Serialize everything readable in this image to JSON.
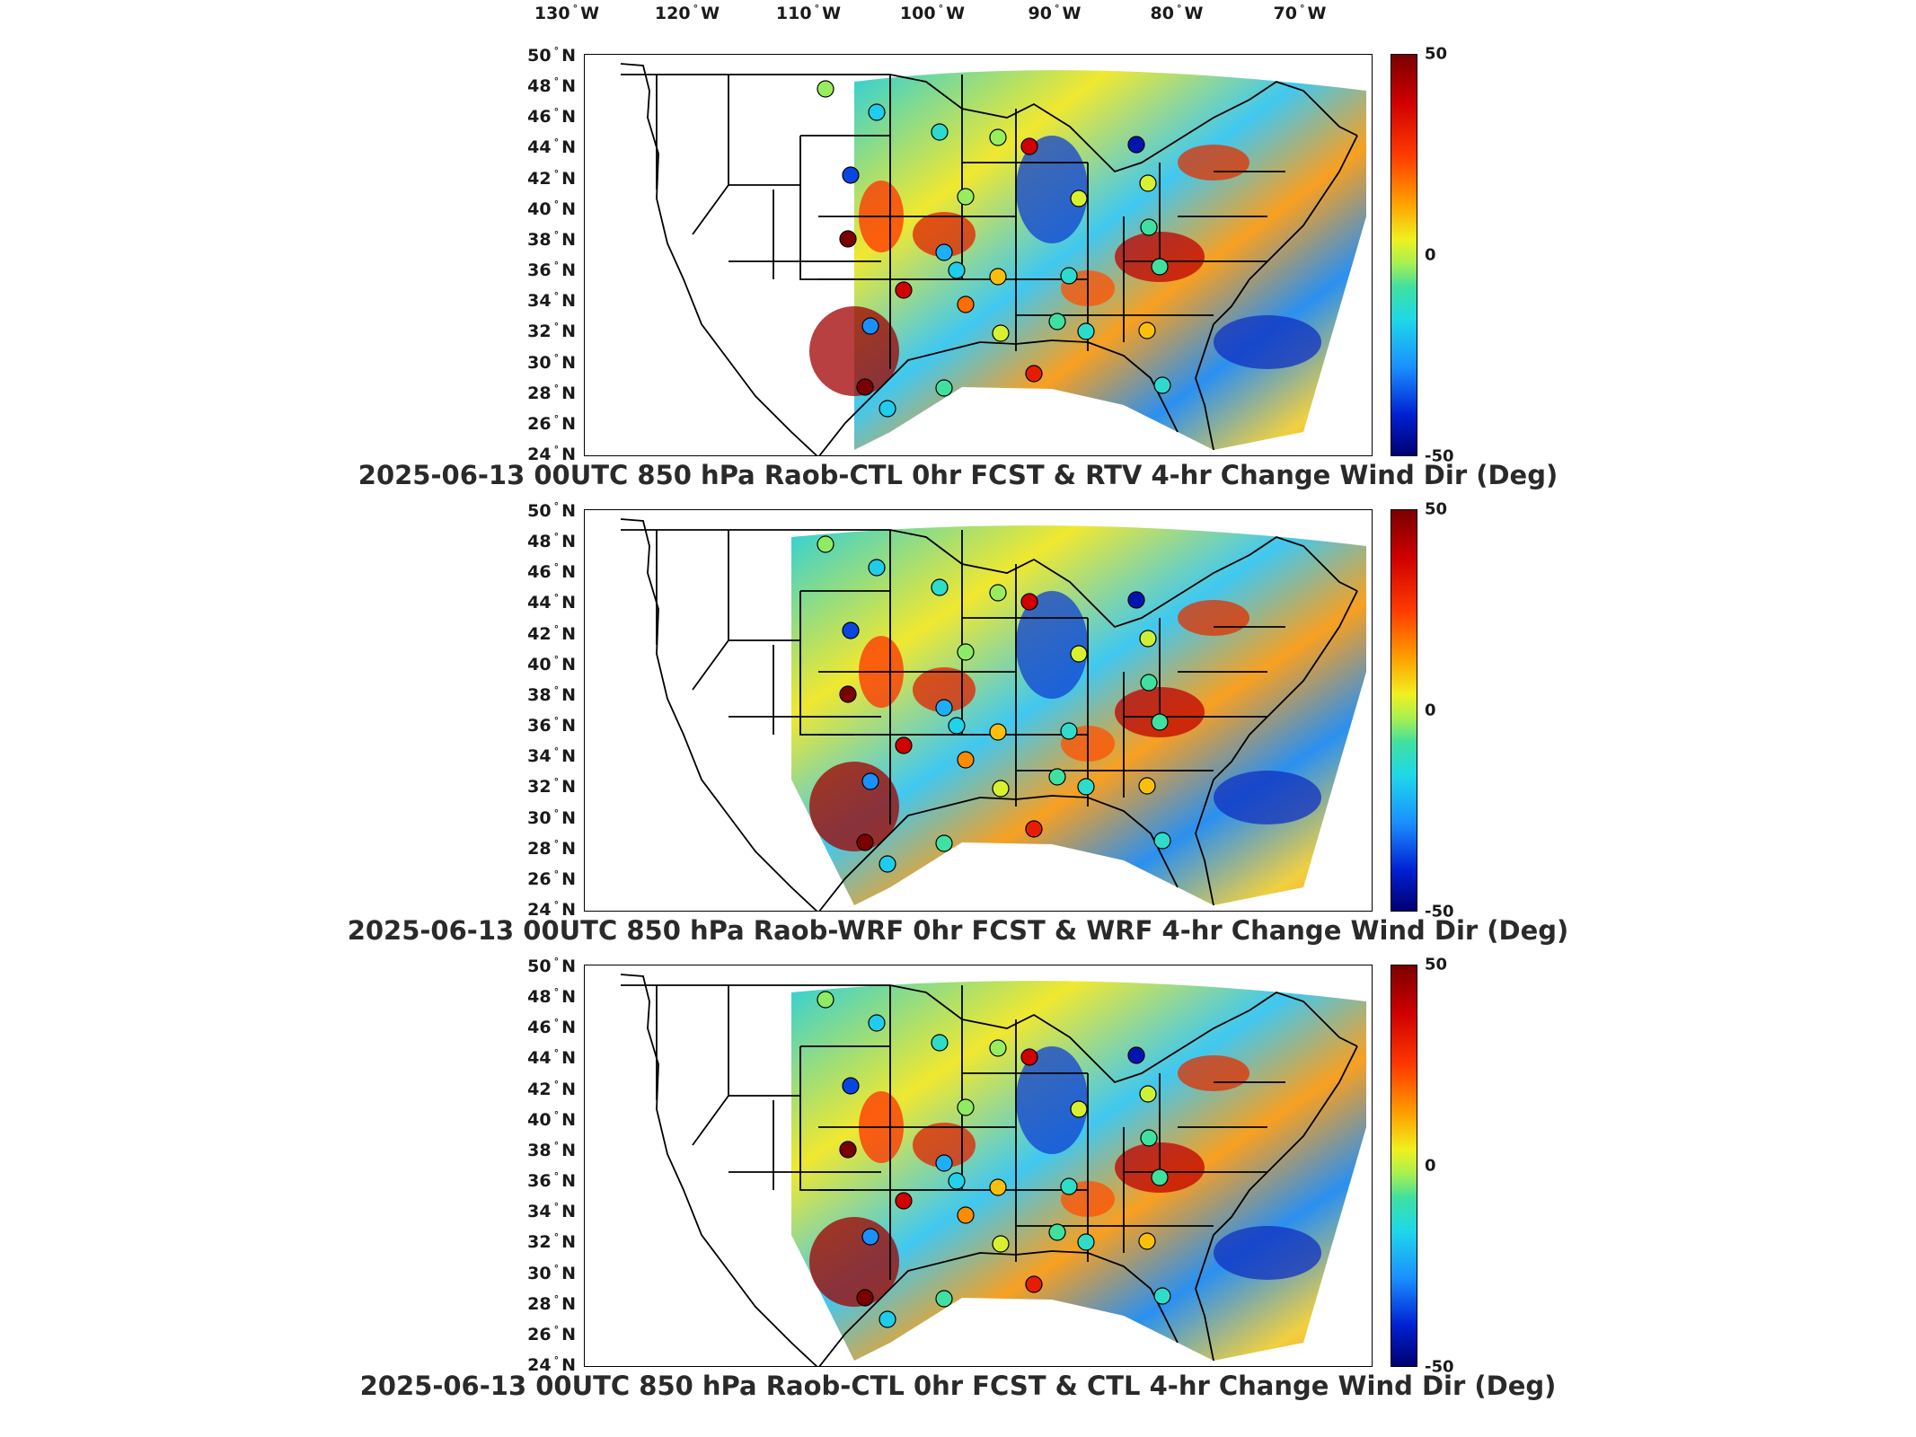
{
  "lon_labels": [
    {
      "deg": "130",
      "dir": "W"
    },
    {
      "deg": "120",
      "dir": "W"
    },
    {
      "deg": "110",
      "dir": "W"
    },
    {
      "deg": "100",
      "dir": "W"
    },
    {
      "deg": "90",
      "dir": "W"
    },
    {
      "deg": "80",
      "dir": "W"
    },
    {
      "deg": "70",
      "dir": "W"
    }
  ],
  "lat_labels": [
    {
      "deg": "50",
      "dir": "N"
    },
    {
      "deg": "48",
      "dir": "N"
    },
    {
      "deg": "46",
      "dir": "N"
    },
    {
      "deg": "44",
      "dir": "N"
    },
    {
      "deg": "42",
      "dir": "N"
    },
    {
      "deg": "40",
      "dir": "N"
    },
    {
      "deg": "38",
      "dir": "N"
    },
    {
      "deg": "36",
      "dir": "N"
    },
    {
      "deg": "34",
      "dir": "N"
    },
    {
      "deg": "32",
      "dir": "N"
    },
    {
      "deg": "30",
      "dir": "N"
    },
    {
      "deg": "28",
      "dir": "N"
    },
    {
      "deg": "26",
      "dir": "N"
    },
    {
      "deg": "24",
      "dir": "N"
    }
  ],
  "colorbar": {
    "max": "50",
    "mid": "0",
    "min": "-50"
  },
  "colors": {
    "high": "#8b0000",
    "positive": "#ff8c00",
    "neutral": "#f0f020",
    "negative": "#1a90ff",
    "low": "#000080"
  },
  "panels": [
    {
      "title": "2025-06-13 00UTC 850 hPa Raob-CTL 0hr FCST & RTV 4-hr Change Wind Dir (Deg)"
    },
    {
      "title": "2025-06-13 00UTC 850 hPa Raob-WRF 0hr FCST & WRF 4-hr Change Wind Dir (Deg)"
    },
    {
      "title": "2025-06-13 00UTC 850 hPa Raob-CTL 0hr FCST & CTL 4-hr Change Wind Dir (Deg)"
    }
  ],
  "stations": [
    {
      "value": 5
    },
    {
      "value": -10
    },
    {
      "value": 5
    },
    {
      "value": -5
    },
    {
      "value": 45
    },
    {
      "value": -40
    },
    {
      "value": 10
    },
    {
      "value": -30
    },
    {
      "value": 50
    },
    {
      "value": 5
    },
    {
      "value": 10
    },
    {
      "value": 0
    },
    {
      "value": -10
    },
    {
      "value": -20
    },
    {
      "value": 20
    },
    {
      "value": -5
    },
    {
      "value": 45
    },
    {
      "value": 10
    },
    {
      "value": 0
    },
    {
      "value": 20
    },
    {
      "value": -10
    },
    {
      "value": -5
    },
    {
      "value": 50
    },
    {
      "value": 0
    },
    {
      "value": 30
    },
    {
      "value": -15
    },
    {
      "value": 40
    },
    {
      "value": -5
    },
    {
      "value": 0
    }
  ]
}
